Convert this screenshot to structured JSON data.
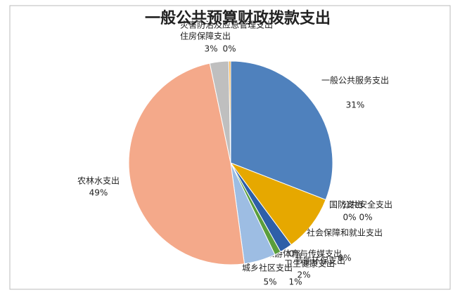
{
  "chart_data": {
    "type": "pie",
    "title": "一般公共预算财政拨款支出",
    "categories": [
      "一般公共服务支出",
      "国防支出",
      "公共安全支出",
      "社会保障和就业支出",
      "文化旅游体育与传媒支出",
      "卫生健康支出",
      "节能环保支出",
      "城乡社区支出",
      "农林水支出",
      "住房保障支出",
      "灾害防治及应急管理支出"
    ],
    "values": [
      31,
      0,
      0,
      9,
      0,
      2,
      1,
      5,
      49,
      3,
      0.3
    ],
    "value_labels": [
      "31%",
      "0%",
      "0%",
      "9%",
      "0%",
      "2%",
      "1%",
      "5%",
      "49%",
      "3%",
      "0%"
    ],
    "colors": [
      "#4f81bd",
      "#c0504d",
      "#8064a2",
      "#e6a800",
      "#7f7f7f",
      "#2e5fa8",
      "#5a9e3c",
      "#9dbde3",
      "#f4a98a",
      "#bfbfbf",
      "#f7b24a"
    ]
  }
}
